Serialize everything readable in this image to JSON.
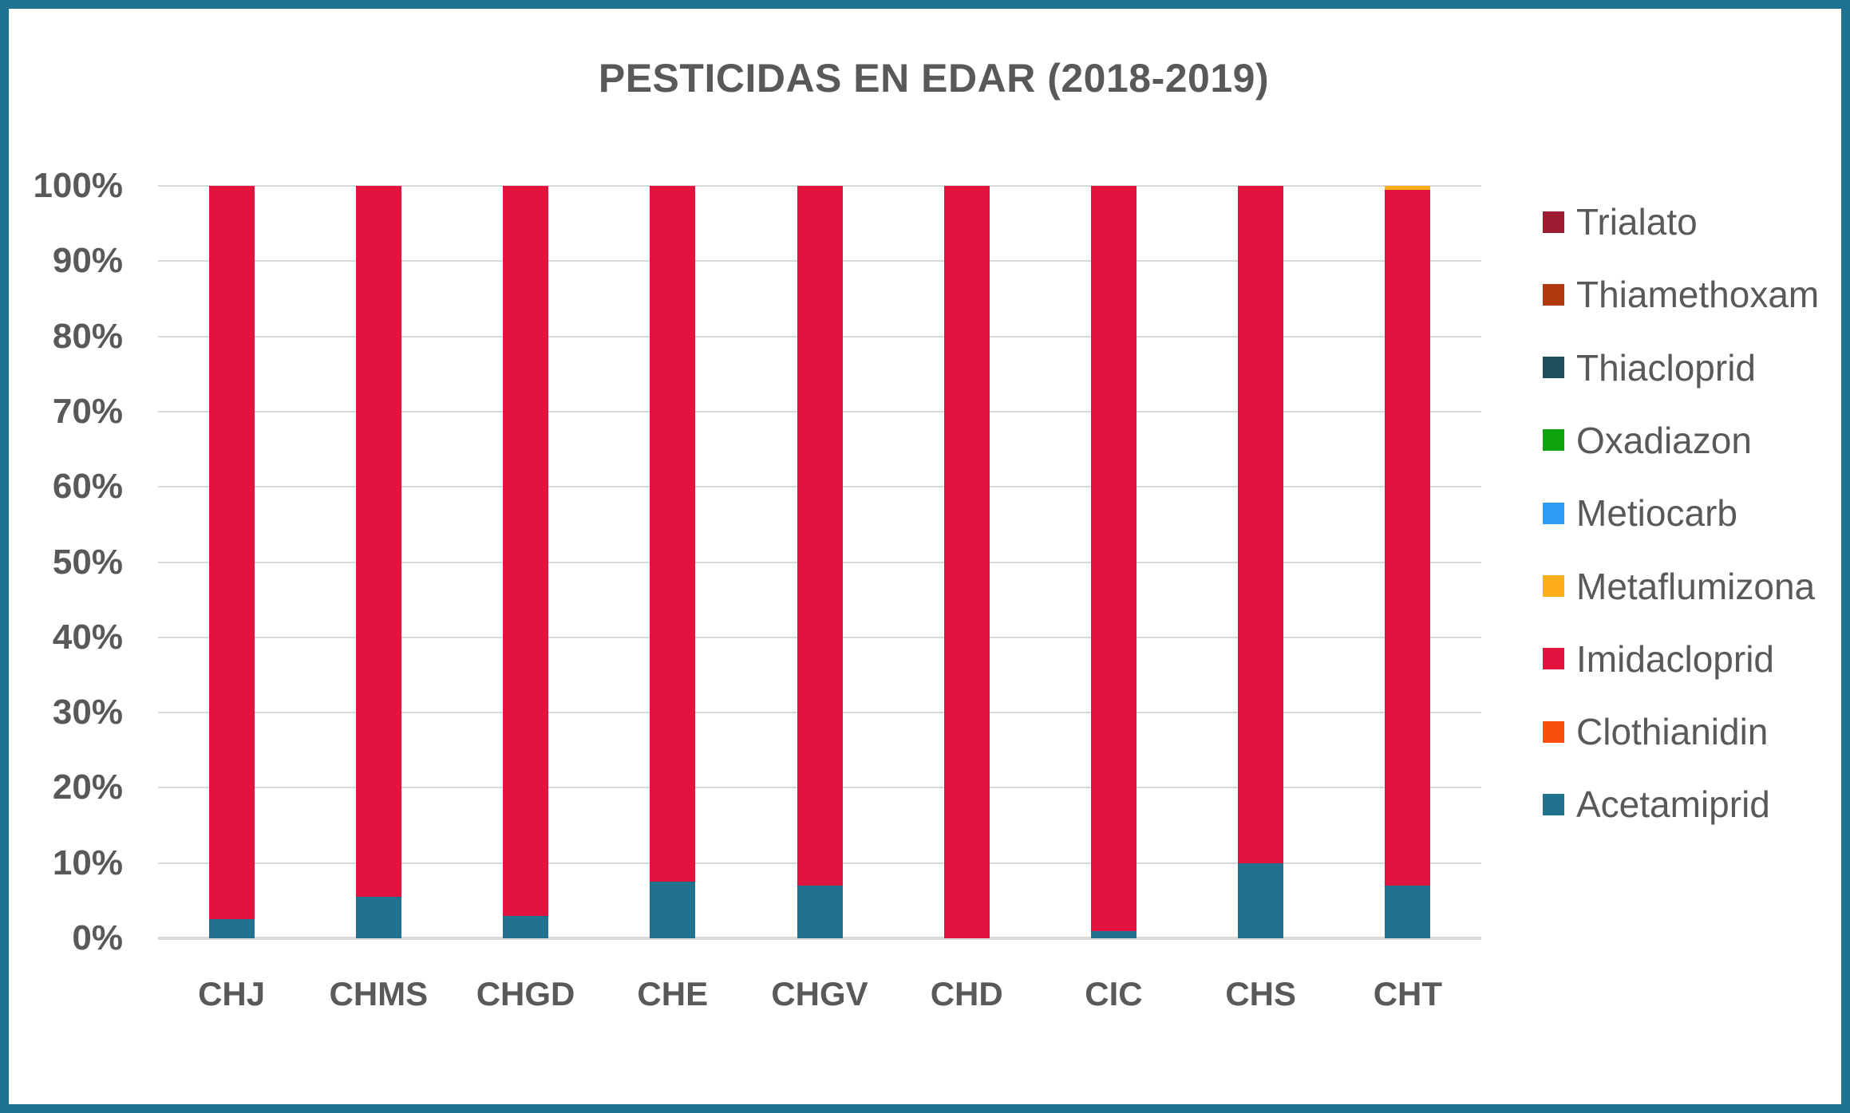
{
  "title": "PESTICIDAS EN EDAR (2018-2019)",
  "colors": {
    "frame_border": "#1F7190",
    "text": "#595959",
    "gridline": "#D9D9D9",
    "background": "#FFFFFF"
  },
  "chart_data": {
    "type": "bar",
    "stacked": true,
    "percent_stacked": true,
    "title": "PESTICIDAS EN EDAR (2018-2019)",
    "xlabel": "",
    "ylabel": "",
    "categories": [
      "CHJ",
      "CHMS",
      "CHGD",
      "CHE",
      "CHGV",
      "CHD",
      "CIC",
      "CHS",
      "CHT"
    ],
    "series": [
      {
        "name": "Trialato",
        "color": "#9B1B32",
        "values": [
          0,
          0,
          0,
          0,
          0,
          0,
          0,
          0,
          0
        ]
      },
      {
        "name": "Thiamethoxam",
        "color": "#B1390E",
        "values": [
          0,
          0,
          0,
          0,
          0,
          0,
          0,
          0,
          0
        ]
      },
      {
        "name": "Thiacloprid",
        "color": "#1F4E5F",
        "values": [
          0,
          0,
          0,
          0,
          0,
          0,
          0,
          0,
          0
        ]
      },
      {
        "name": "Oxadiazon",
        "color": "#0FA30F",
        "values": [
          0,
          0,
          0,
          0,
          0,
          0,
          0,
          0,
          0
        ]
      },
      {
        "name": "Metiocarb",
        "color": "#2D9BF1",
        "values": [
          0,
          0,
          0,
          0,
          0,
          0,
          0,
          0,
          0
        ]
      },
      {
        "name": "Metaflumizona",
        "color": "#FFAE1B",
        "values": [
          0,
          0,
          0,
          0,
          0,
          0,
          0,
          0,
          0.5
        ]
      },
      {
        "name": "Imidacloprid",
        "color": "#E0143F",
        "values": [
          97.5,
          94.5,
          97,
          92.5,
          93,
          100,
          99,
          90,
          92.5
        ]
      },
      {
        "name": "Clothianidin",
        "color": "#FA4F0C",
        "values": [
          0,
          0,
          0,
          0,
          0,
          0,
          0,
          0,
          0
        ]
      },
      {
        "name": "Acetamiprid",
        "color": "#20728E",
        "values": [
          2.5,
          5.5,
          3,
          7.5,
          7,
          0,
          1,
          10,
          7
        ]
      }
    ],
    "y_ticks": [
      "0%",
      "10%",
      "20%",
      "30%",
      "40%",
      "50%",
      "60%",
      "70%",
      "80%",
      "90%",
      "100%"
    ],
    "ylim": [
      0,
      100
    ],
    "grid": true,
    "legend_position": "right",
    "legend_order_top_to_bottom": [
      "Trialato",
      "Thiamethoxam",
      "Thiacloprid",
      "Oxadiazon",
      "Metiocarb",
      "Metaflumizona",
      "Imidacloprid",
      "Clothianidin",
      "Acetamiprid"
    ]
  }
}
